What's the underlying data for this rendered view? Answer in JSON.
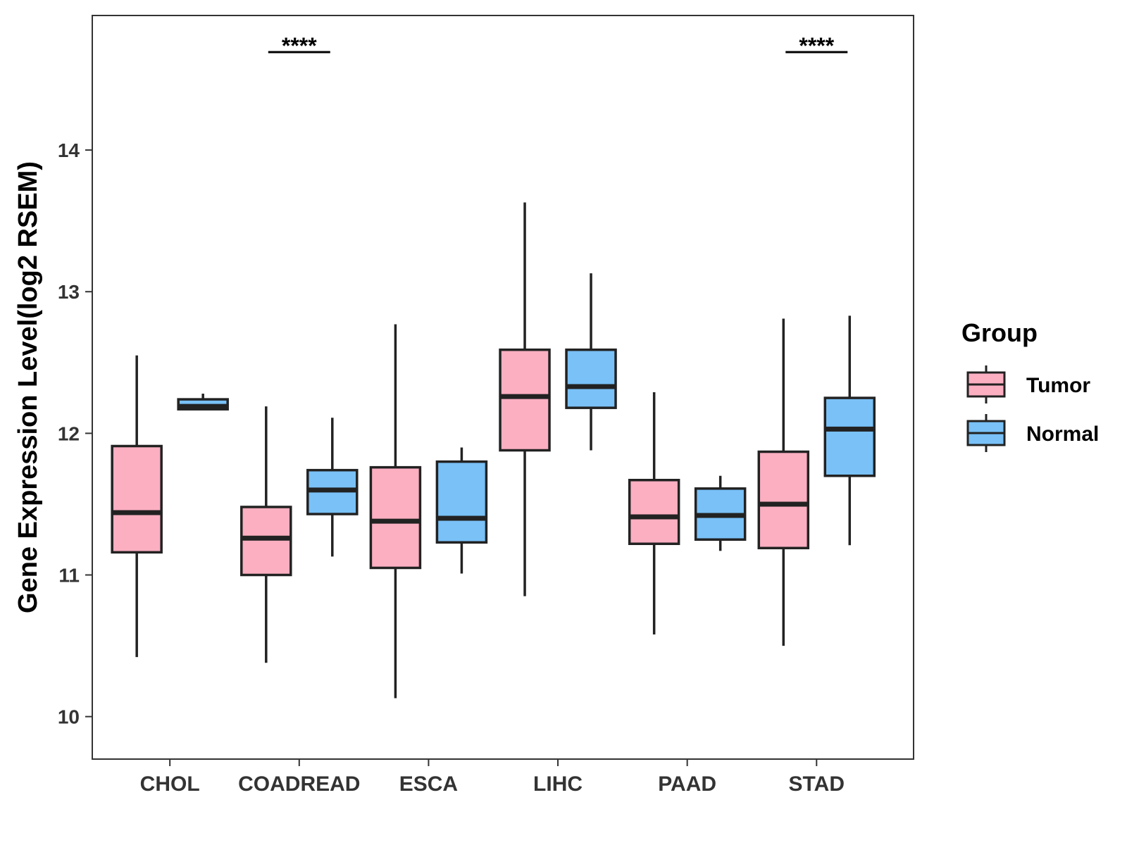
{
  "chart_data": {
    "type": "boxplot",
    "title": "",
    "xlabel": "",
    "ylabel": "Gene Expression Level(log2 RSEM)",
    "ylim": [
      9.7,
      14.95
    ],
    "yticks": [
      10,
      11,
      12,
      13,
      14
    ],
    "categories": [
      "CHOL",
      "COADREAD",
      "ESCA",
      "LIHC",
      "PAAD",
      "STAD"
    ],
    "legend": {
      "title": "Group",
      "position": "right"
    },
    "series": [
      {
        "name": "Tumor",
        "color": "#FBAFC1",
        "boxes": [
          {
            "min": 10.42,
            "q1": 11.16,
            "median": 11.44,
            "q3": 11.91,
            "max": 12.55
          },
          {
            "min": 10.38,
            "q1": 11.0,
            "median": 11.26,
            "q3": 11.48,
            "max": 12.19
          },
          {
            "min": 10.13,
            "q1": 11.05,
            "median": 11.38,
            "q3": 11.76,
            "max": 12.77
          },
          {
            "min": 10.85,
            "q1": 11.88,
            "median": 12.26,
            "q3": 12.59,
            "max": 13.63
          },
          {
            "min": 10.58,
            "q1": 11.22,
            "median": 11.41,
            "q3": 11.67,
            "max": 12.29
          },
          {
            "min": 10.5,
            "q1": 11.19,
            "median": 11.5,
            "q3": 11.87,
            "max": 12.81
          }
        ]
      },
      {
        "name": "Normal",
        "color": "#79C1F7",
        "boxes": [
          {
            "min": 12.17,
            "q1": 12.17,
            "median": 12.19,
            "q3": 12.24,
            "max": 12.28
          },
          {
            "min": 11.13,
            "q1": 11.43,
            "median": 11.6,
            "q3": 11.74,
            "max": 12.11
          },
          {
            "min": 11.01,
            "q1": 11.23,
            "median": 11.4,
            "q3": 11.8,
            "max": 11.9
          },
          {
            "min": 11.88,
            "q1": 12.18,
            "median": 12.33,
            "q3": 12.59,
            "max": 13.13
          },
          {
            "min": 11.17,
            "q1": 11.25,
            "median": 11.42,
            "q3": 11.61,
            "max": 11.7
          },
          {
            "min": 11.21,
            "q1": 11.7,
            "median": 12.03,
            "q3": 12.25,
            "max": 12.83
          }
        ]
      }
    ],
    "annotations": [
      {
        "category": "COADREAD",
        "text": "****"
      },
      {
        "category": "STAD",
        "text": "****"
      }
    ]
  }
}
